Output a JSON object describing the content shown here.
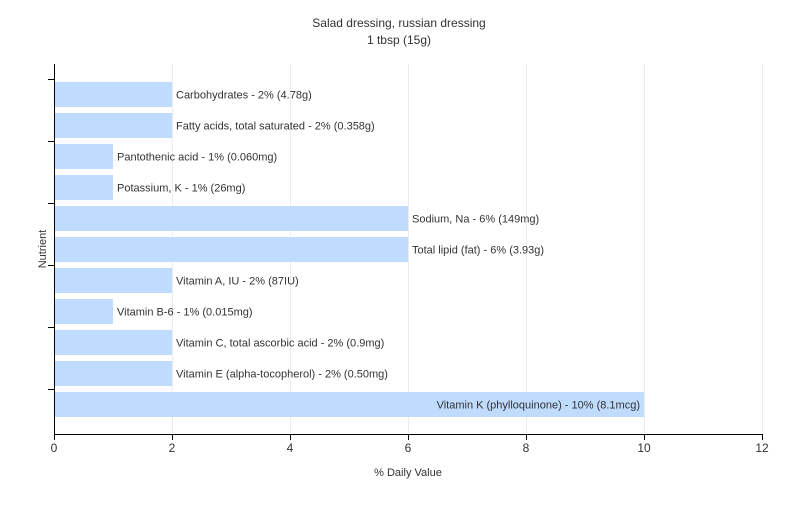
{
  "chart_data": {
    "type": "bar",
    "orientation": "horizontal",
    "title": "Salad dressing, russian dressing",
    "subtitle": "1 tbsp (15g)",
    "xlabel": "% Daily Value",
    "ylabel": "Nutrient",
    "xlim": [
      0,
      12
    ],
    "xticks": [
      0,
      2,
      4,
      6,
      8,
      10,
      12
    ],
    "grid": "vertical",
    "bar_color": "#bfdbfe",
    "categories": [
      "Carbohydrates",
      "Fatty acids, total saturated",
      "Pantothenic acid",
      "Potassium, K",
      "Sodium, Na",
      "Total lipid (fat)",
      "Vitamin A, IU",
      "Vitamin B-6",
      "Vitamin C, total ascorbic acid",
      "Vitamin E (alpha-tocopherol)",
      "Vitamin K (phylloquinone)"
    ],
    "values": [
      2,
      2,
      1,
      1,
      6,
      6,
      2,
      1,
      2,
      2,
      10
    ],
    "labels": [
      "Carbohydrates - 2% (4.78g)",
      "Fatty acids, total saturated - 2% (0.358g)",
      "Pantothenic acid - 1% (0.060mg)",
      "Potassium, K - 1% (26mg)",
      "Sodium, Na - 6% (149mg)",
      "Total lipid (fat) - 6% (3.93g)",
      "Vitamin A, IU - 2% (87IU)",
      "Vitamin B-6 - 1% (0.015mg)",
      "Vitamin C, total ascorbic acid - 2% (0.9mg)",
      "Vitamin E (alpha-tocopherol) - 2% (0.50mg)",
      "Vitamin K (phylloquinone) - 10% (8.1mcg)"
    ]
  }
}
